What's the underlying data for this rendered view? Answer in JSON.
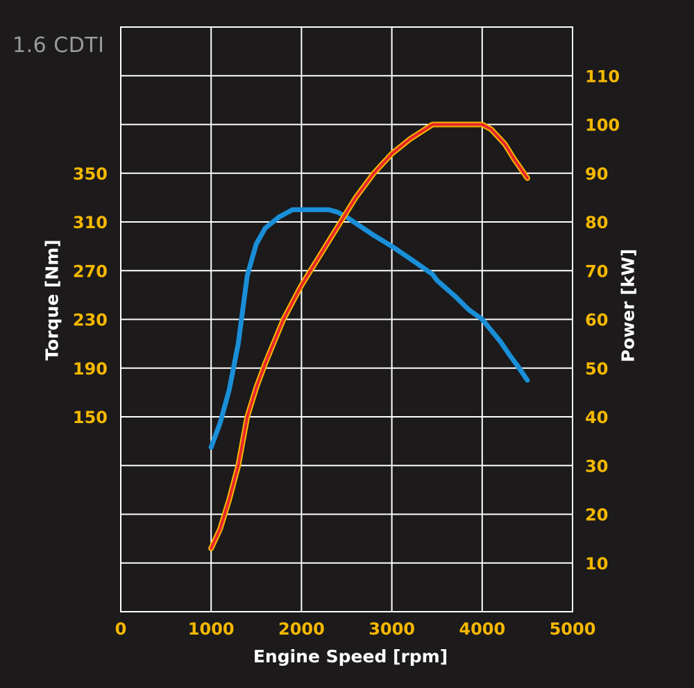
{
  "chart_data": {
    "type": "line",
    "title": "1.6 CDTI",
    "xlabel": "Engine Speed [rpm]",
    "ylabel_left": "Torque [Nm]",
    "ylabel_right": "Power [kW]",
    "xlim": [
      0,
      5000
    ],
    "ylim_right": [
      0,
      120
    ],
    "x_ticks": [
      "0",
      "1000",
      "2000",
      "3000",
      "4000",
      "5000"
    ],
    "y_left_ticks": [
      {
        "label": "150",
        "at_power": 40
      },
      {
        "label": "190",
        "at_power": 50
      },
      {
        "label": "230",
        "at_power": 60
      },
      {
        "label": "270",
        "at_power": 70
      },
      {
        "label": "310",
        "at_power": 80
      },
      {
        "label": "350",
        "at_power": 90
      }
    ],
    "y_right_ticks": [
      "10",
      "20",
      "30",
      "40",
      "50",
      "60",
      "70",
      "80",
      "90",
      "100",
      "110"
    ],
    "grid": true,
    "background_color": "#1c1a1b",
    "grid_color": "#ffffff",
    "tick_color": "#f5b800",
    "series": [
      {
        "axis": "left",
        "color": "#1a8fd8",
        "points": [
          [
            1000,
            125
          ],
          [
            1100,
            145
          ],
          [
            1200,
            172
          ],
          [
            1300,
            210
          ],
          [
            1400,
            266
          ],
          [
            1500,
            292
          ],
          [
            1600,
            305
          ],
          [
            1750,
            314
          ],
          [
            1900,
            320
          ],
          [
            2300,
            320
          ],
          [
            2400,
            318
          ],
          [
            2500,
            314
          ],
          [
            2600,
            309
          ],
          [
            2800,
            299
          ],
          [
            3000,
            290
          ],
          [
            3200,
            280
          ],
          [
            3450,
            267
          ],
          [
            3500,
            262
          ],
          [
            3700,
            249
          ],
          [
            3850,
            238
          ],
          [
            4000,
            230
          ],
          [
            4100,
            221
          ],
          [
            4200,
            212
          ],
          [
            4300,
            201
          ],
          [
            4400,
            191
          ],
          [
            4500,
            180
          ]
        ]
      },
      {
        "axis": "right",
        "color": "#e8262a",
        "outline": "#f5b800",
        "points": [
          [
            1000,
            13
          ],
          [
            1100,
            17
          ],
          [
            1200,
            23
          ],
          [
            1300,
            30
          ],
          [
            1400,
            40
          ],
          [
            1500,
            46
          ],
          [
            1600,
            51
          ],
          [
            1800,
            60
          ],
          [
            2000,
            67
          ],
          [
            2200,
            73
          ],
          [
            2400,
            79
          ],
          [
            2600,
            85
          ],
          [
            2800,
            90
          ],
          [
            3000,
            94
          ],
          [
            3200,
            97
          ],
          [
            3450,
            100
          ],
          [
            3600,
            100
          ],
          [
            3800,
            100
          ],
          [
            4000,
            100
          ],
          [
            4100,
            99
          ],
          [
            4250,
            96
          ],
          [
            4350,
            93
          ],
          [
            4500,
            89
          ]
        ]
      }
    ]
  }
}
